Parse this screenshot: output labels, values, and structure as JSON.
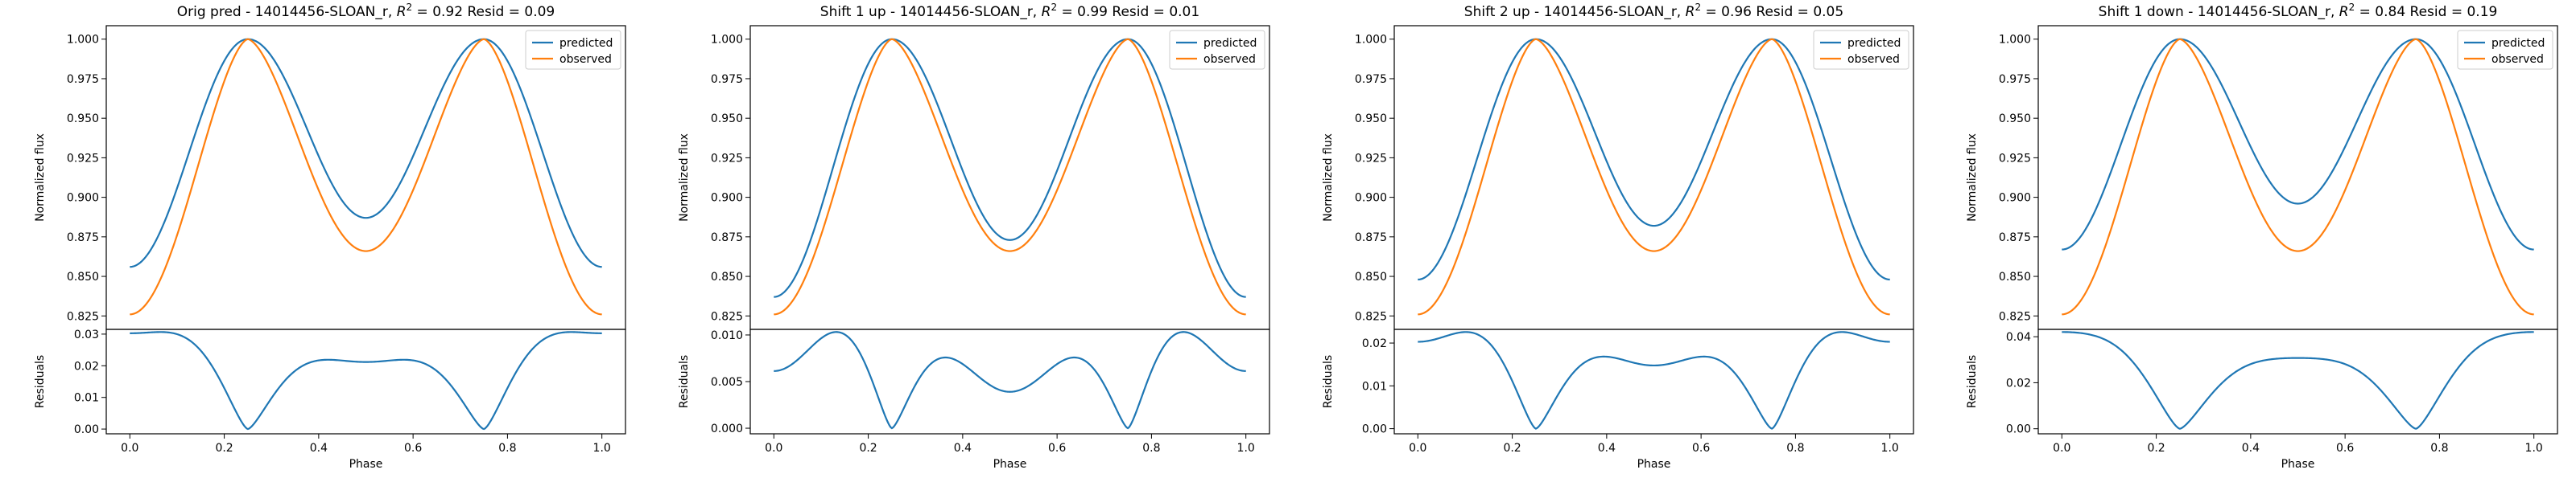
{
  "colors": {
    "predicted": "#1f77b4",
    "observed": "#ff7f0e"
  },
  "chart_data": [
    {
      "type": "line",
      "title_prefix": "Orig pred - 14014456-SLOAN_r, ",
      "title_r2": "0.92",
      "title_resid": "Resid = 0.09",
      "ylabel": "Normalized flux",
      "resid_ylabel": "Residuals",
      "xlabel": "Phase",
      "x_ticks": [
        "0.0",
        "0.2",
        "0.4",
        "0.6",
        "0.8",
        "1.0"
      ],
      "flux_ticks": [
        "0.825",
        "0.850",
        "0.875",
        "0.900",
        "0.925",
        "0.950",
        "0.975",
        "1.000"
      ],
      "resid_ticks": [
        "0.00",
        "0.01",
        "0.02",
        "0.03"
      ],
      "resid_ylim": [
        -0.0015,
        0.0315
      ],
      "predicted_min": 0.856,
      "predicted_mid": 0.887,
      "residual_min_shape": 0.5,
      "legend": [
        "predicted",
        "observed"
      ],
      "legend_loc": "upper right"
    },
    {
      "type": "line",
      "title_prefix": "Shift 1 up - 14014456-SLOAN_r, ",
      "title_r2": "0.99",
      "title_resid": "Resid = 0.01",
      "ylabel": "Normalized flux",
      "resid_ylabel": "Residuals",
      "xlabel": "Phase",
      "x_ticks": [
        "0.0",
        "0.2",
        "0.4",
        "0.6",
        "0.8",
        "1.0"
      ],
      "flux_ticks": [
        "0.825",
        "0.850",
        "0.875",
        "0.900",
        "0.925",
        "0.950",
        "0.975",
        "1.000"
      ],
      "resid_ticks": [
        "0.000",
        "0.005",
        "0.010"
      ],
      "resid_ylim": [
        -0.0006,
        0.0106
      ],
      "predicted_min": 0.837,
      "predicted_mid": 0.873,
      "residual_min_shape": 0.5,
      "legend": [
        "predicted",
        "observed"
      ],
      "legend_loc": "upper right"
    },
    {
      "type": "line",
      "title_prefix": "Shift 2 up - 14014456-SLOAN_r, ",
      "title_r2": "0.96",
      "title_resid": "Resid = 0.05",
      "ylabel": "Normalized flux",
      "resid_ylabel": "Residuals",
      "xlabel": "Phase",
      "x_ticks": [
        "0.0",
        "0.2",
        "0.4",
        "0.6",
        "0.8",
        "1.0"
      ],
      "flux_ticks": [
        "0.825",
        "0.850",
        "0.875",
        "0.900",
        "0.925",
        "0.950",
        "0.975",
        "1.000"
      ],
      "resid_ticks": [
        "0.00",
        "0.01",
        "0.02"
      ],
      "resid_ylim": [
        -0.0012,
        0.0232
      ],
      "predicted_min": 0.848,
      "predicted_mid": 0.882,
      "residual_min_shape": 0.5,
      "legend": [
        "predicted",
        "observed"
      ],
      "legend_loc": "upper right"
    },
    {
      "type": "line",
      "title_prefix": "Shift 1 down - 14014456-SLOAN_r, ",
      "title_r2": "0.84",
      "title_resid": "Resid = 0.19",
      "ylabel": "Normalized flux",
      "resid_ylabel": "Residuals",
      "xlabel": "Phase",
      "x_ticks": [
        "0.0",
        "0.2",
        "0.4",
        "0.6",
        "0.8",
        "1.0"
      ],
      "flux_ticks": [
        "0.825",
        "0.850",
        "0.875",
        "0.900",
        "0.925",
        "0.950",
        "0.975",
        "1.000"
      ],
      "resid_ticks": [
        "0.00",
        "0.02",
        "0.04"
      ],
      "resid_ylim": [
        -0.0022,
        0.0432
      ],
      "predicted_min": 0.867,
      "predicted_mid": 0.896,
      "residual_min_shape": 0.5,
      "legend": [
        "predicted",
        "observed"
      ],
      "legend_loc": "upper right"
    }
  ],
  "observed_curve": {
    "min": 0.826,
    "mid": 0.866,
    "max": 1.0
  },
  "flux_ylim": [
    0.8165,
    1.0085
  ],
  "x_range": [
    -0.05,
    1.05
  ]
}
